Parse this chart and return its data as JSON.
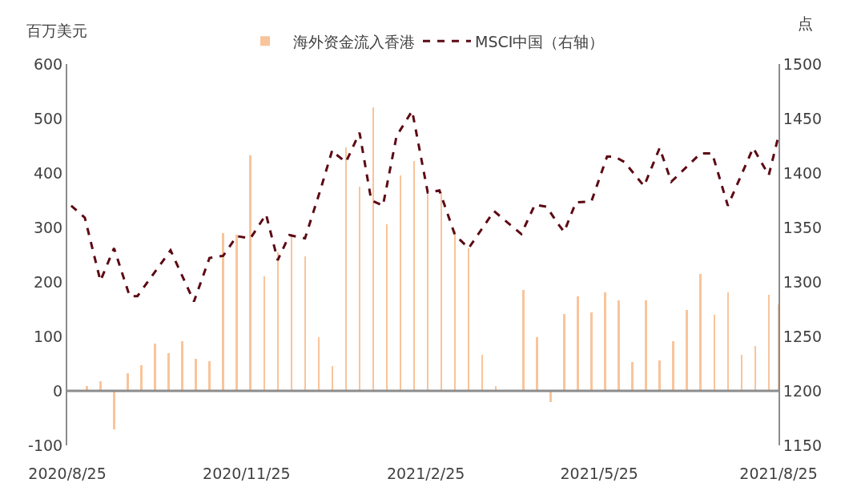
{
  "chart_data": {
    "type": "bar",
    "ylabel": "百万美元",
    "y2label": "点",
    "xlim": [
      "2020-08-25",
      "2021-08-25"
    ],
    "xticks": [
      {
        "value": "2020-08-25",
        "label": "2020/8/25"
      },
      {
        "value": "2020-11-25",
        "label": "2020/11/25"
      },
      {
        "value": "2021-02-25",
        "label": "2021/2/25"
      },
      {
        "value": "2021-05-25",
        "label": "2021/5/25"
      },
      {
        "value": "2021-08-25",
        "label": "2021/8/25"
      }
    ],
    "ylim": [
      -100,
      600
    ],
    "yticks": [
      -100,
      0,
      100,
      200,
      300,
      400,
      500,
      600
    ],
    "y2lim": [
      1150,
      1500
    ],
    "y2ticks": [
      1150,
      1200,
      1250,
      1300,
      1350,
      1400,
      1450,
      1500
    ],
    "legend": "top",
    "ref_lines": [
      {
        "axis": "y",
        "value": 0,
        "color": "#8c8c8c"
      }
    ],
    "series": [
      {
        "name": "海外资金流入香港",
        "color": "#f9c49a",
        "x": [
          "2020-09-04",
          "2020-09-11",
          "2020-09-18",
          "2020-09-25",
          "2020-10-02",
          "2020-10-09",
          "2020-10-16",
          "2020-10-23",
          "2020-10-30",
          "2020-11-06",
          "2020-11-13",
          "2020-11-20",
          "2020-11-27",
          "2020-12-04",
          "2020-12-11",
          "2020-12-18",
          "2020-12-25",
          "2021-01-01",
          "2021-01-08",
          "2021-01-15",
          "2021-01-22",
          "2021-01-29",
          "2021-02-05",
          "2021-02-12",
          "2021-02-19",
          "2021-02-26",
          "2021-03-05",
          "2021-03-12",
          "2021-03-19",
          "2021-03-26",
          "2021-04-02",
          "2021-04-16",
          "2021-04-23",
          "2021-04-30",
          "2021-05-07",
          "2021-05-14",
          "2021-05-21",
          "2021-05-28",
          "2021-06-04",
          "2021-06-11",
          "2021-06-18",
          "2021-06-25",
          "2021-07-02",
          "2021-07-09",
          "2021-07-16",
          "2021-07-23",
          "2021-07-30",
          "2021-08-06",
          "2021-08-13",
          "2021-08-20",
          "2021-08-25"
        ],
        "values": [
          9,
          18,
          -70,
          32,
          47,
          87,
          69,
          91,
          59,
          55,
          290,
          287,
          432,
          211,
          255,
          288,
          247,
          99,
          46,
          447,
          375,
          521,
          306,
          396,
          422,
          360,
          365,
          294,
          262,
          66,
          9,
          185,
          99,
          -20,
          141,
          174,
          144,
          181,
          166,
          53,
          166,
          56,
          91,
          149,
          215,
          140,
          181,
          66,
          82,
          176,
          159
        ]
      },
      {
        "name": "MSCI中国（右轴）",
        "type": "line",
        "axis": "y2",
        "color": "#5c0a14",
        "line_style": "dashed",
        "marker": "none",
        "x": [
          "2020-08-27",
          "2020-09-03",
          "2020-09-11",
          "2020-09-18",
          "2020-09-26",
          "2020-09-30",
          "2020-10-17",
          "2020-10-29",
          "2020-11-06",
          "2020-11-13",
          "2020-11-20",
          "2020-11-27",
          "2020-12-05",
          "2020-12-11",
          "2020-12-17",
          "2020-12-25",
          "2021-01-02",
          "2021-01-08",
          "2021-01-10",
          "2021-01-15",
          "2021-01-22",
          "2021-01-28",
          "2021-02-03",
          "2021-02-10",
          "2021-02-18",
          "2021-02-26",
          "2021-03-04",
          "2021-03-12",
          "2021-03-19",
          "2021-04-01",
          "2021-04-15",
          "2021-04-22",
          "2021-04-28",
          "2021-05-04",
          "2021-05-07",
          "2021-05-13",
          "2021-05-21",
          "2021-05-29",
          "2021-06-02",
          "2021-06-07",
          "2021-06-17",
          "2021-06-25",
          "2021-07-01",
          "2021-07-16",
          "2021-07-22",
          "2021-07-30",
          "2021-08-12",
          "2021-08-20",
          "2021-08-25"
        ],
        "values": [
          1370,
          1359,
          1301,
          1331,
          1287,
          1287,
          1329,
          1282,
          1322,
          1324,
          1342,
          1340,
          1362,
          1320,
          1343,
          1340,
          1385,
          1421,
          1417,
          1410,
          1437,
          1375,
          1370,
          1434,
          1457,
          1382,
          1384,
          1343,
          1331,
          1365,
          1344,
          1371,
          1369,
          1353,
          1346,
          1373,
          1374,
          1415,
          1415,
          1410,
          1388,
          1423,
          1392,
          1418,
          1418,
          1370,
          1423,
          1398,
          1434
        ]
      }
    ]
  }
}
